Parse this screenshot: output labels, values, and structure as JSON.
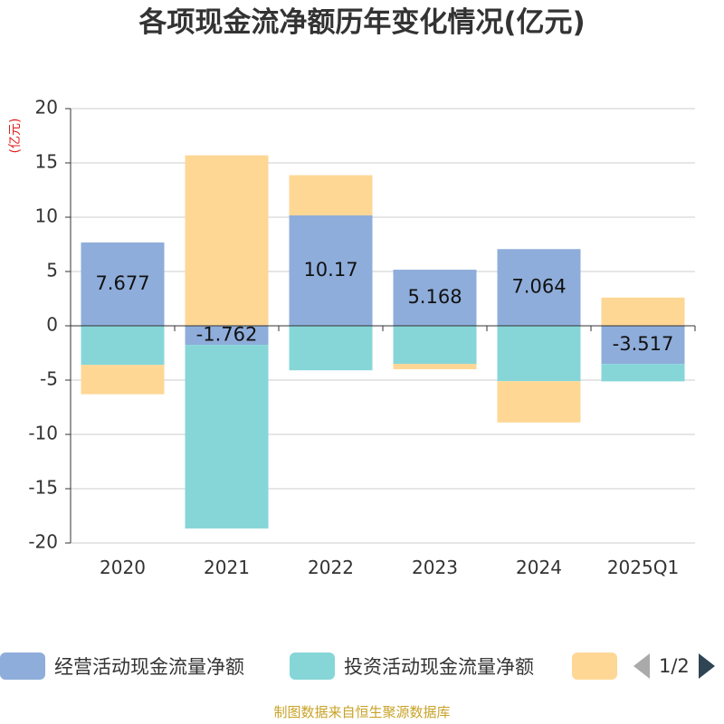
{
  "title": "各项现金流净额历年变化情况(亿元)",
  "unit": "(亿元)",
  "colors": {
    "operating": "#8eadda",
    "investing": "#86d6d8",
    "financing": "#fed795",
    "axis": "#333333",
    "grid": "#cccccc",
    "unit": "#e0201f",
    "source": "#c9a227"
  },
  "chart_data": {
    "type": "bar",
    "stacked": true,
    "categories": [
      "2020",
      "2021",
      "2022",
      "2023",
      "2024",
      "2025Q1"
    ],
    "ylim": [
      -20,
      20
    ],
    "yticks": [
      20,
      15,
      10,
      5,
      0,
      -5,
      -10,
      -15,
      -20
    ],
    "series": [
      {
        "name": "经营活动现金流量净额",
        "color_key": "operating",
        "values": [
          7.677,
          -1.762,
          10.17,
          5.168,
          7.064,
          -3.517
        ],
        "show_labels": true
      },
      {
        "name": "投资活动现金流量净额",
        "color_key": "investing",
        "values": [
          -3.6,
          -16.9,
          -4.1,
          -3.5,
          -5.1,
          -1.6
        ],
        "show_labels": false
      },
      {
        "name": "",
        "color_key": "financing",
        "values": [
          -2.7,
          15.7,
          3.7,
          -0.5,
          -3.8,
          2.6
        ],
        "show_labels": false
      }
    ],
    "data_labels": [
      "7.677",
      "-1.762",
      "10.17",
      "5.168",
      "7.064",
      "-3.517"
    ],
    "legend_position": "bottom",
    "grid": true
  },
  "legend": {
    "items": [
      "经营活动现金流量净额",
      "投资活动现金流量净额",
      ""
    ],
    "pager": "1/2"
  },
  "source_note": "制图数据来自恒生聚源数据库"
}
